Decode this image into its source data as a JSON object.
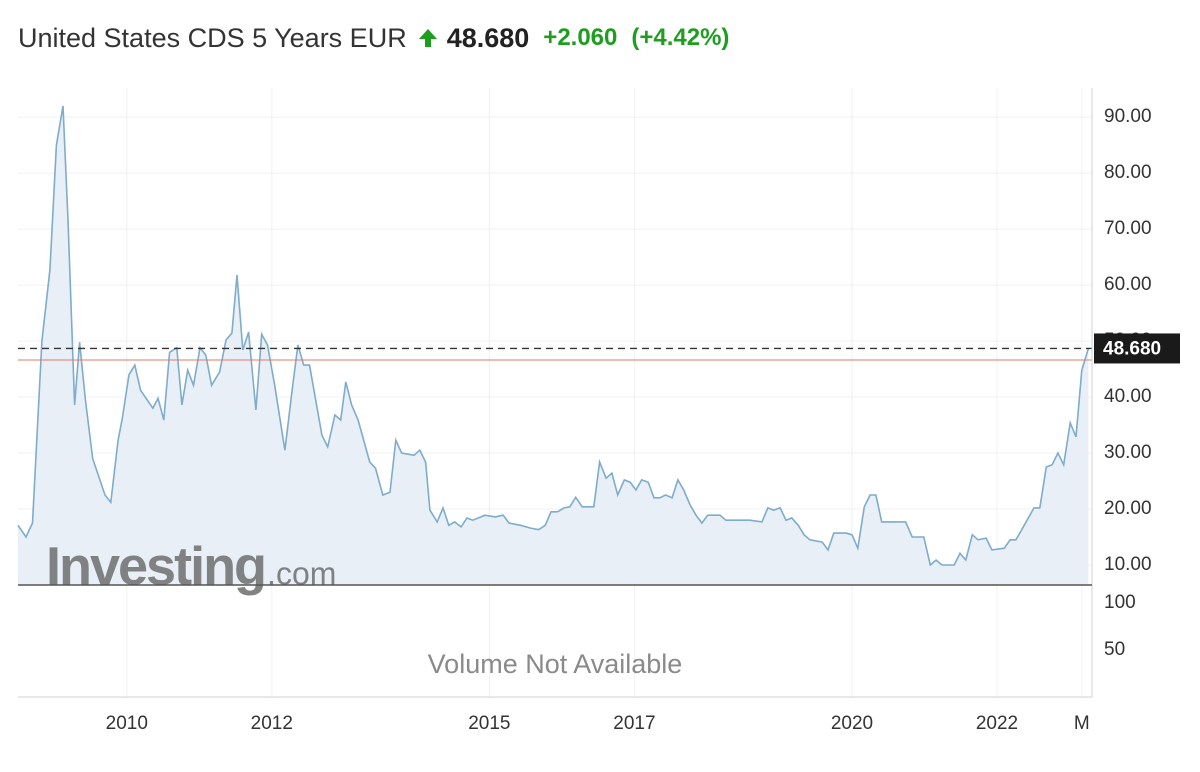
{
  "header": {
    "title": "United States CDS 5 Years EUR",
    "change": "+2.060",
    "change_pct": "(+4.42%)"
  },
  "chart_data": {
    "type": "area",
    "current": {
      "value": 48.68,
      "label": "48.680"
    },
    "prev_close_line": 46.62,
    "watermark": "Investing",
    "watermark_suffix": ".com",
    "volume_note": "Volume Not Available",
    "color": "#7eaccb",
    "fill": "#e8eff7",
    "grid": true,
    "xlim": [
      2008.5,
      2023.31
    ],
    "xticks": [
      2010,
      2012,
      2015,
      2017,
      2020,
      2022,
      {
        "value": 2023.17,
        "label": "M"
      }
    ],
    "ylim": [
      6.43,
      95.2
    ],
    "yticks": [
      {
        "value": 10,
        "label": "10.00"
      },
      {
        "value": 20,
        "label": "20.00"
      },
      {
        "value": 30,
        "label": "30.00"
      },
      {
        "value": 40,
        "label": "40.00"
      },
      {
        "value": 50,
        "label": "50.00"
      },
      {
        "value": 60,
        "label": "60.00"
      },
      {
        "value": 70,
        "label": "70.00"
      },
      {
        "value": 80,
        "label": "80.00"
      },
      {
        "value": 90,
        "label": "90.00"
      }
    ],
    "volume_ylim": [
      0,
      119
    ],
    "volume_yticks": [
      100,
      50
    ],
    "x": [
      2008.5,
      2008.61,
      2008.7,
      2008.83,
      2008.94,
      2009.03,
      2009.12,
      2009.19,
      2009.28,
      2009.35,
      2009.43,
      2009.53,
      2009.7,
      2009.78,
      2009.88,
      2009.94,
      2010.03,
      2010.11,
      2010.19,
      2010.28,
      2010.36,
      2010.43,
      2010.51,
      2010.59,
      2010.69,
      2010.76,
      2010.84,
      2010.92,
      2011.01,
      2011.09,
      2011.17,
      2011.28,
      2011.37,
      2011.45,
      2011.52,
      2011.6,
      2011.68,
      2011.78,
      2011.86,
      2011.94,
      2012.04,
      2012.18,
      2012.28,
      2012.36,
      2012.44,
      2012.52,
      2012.69,
      2012.77,
      2012.87,
      2012.95,
      2013.02,
      2013.1,
      2013.19,
      2013.35,
      2013.43,
      2013.53,
      2013.63,
      2013.71,
      2013.79,
      2013.96,
      2014.04,
      2014.12,
      2014.18,
      2014.28,
      2014.36,
      2014.44,
      2014.52,
      2014.61,
      2014.69,
      2014.77,
      2014.94,
      2015.08,
      2015.19,
      2015.27,
      2015.43,
      2015.57,
      2015.68,
      2015.77,
      2015.85,
      2015.94,
      2016.03,
      2016.11,
      2016.19,
      2016.28,
      2016.44,
      2016.52,
      2016.61,
      2016.69,
      2016.77,
      2016.86,
      2016.94,
      2017.02,
      2017.1,
      2017.19,
      2017.27,
      2017.35,
      2017.43,
      2017.52,
      2017.6,
      2017.68,
      2017.77,
      2017.85,
      2017.93,
      2018.01,
      2018.18,
      2018.26,
      2018.59,
      2018.76,
      2018.84,
      2018.92,
      2019.01,
      2019.09,
      2019.17,
      2019.26,
      2019.34,
      2019.42,
      2019.59,
      2019.67,
      2019.75,
      2019.92,
      2020.0,
      2020.08,
      2020.17,
      2020.25,
      2020.33,
      2020.41,
      2020.74,
      2020.83,
      2020.99,
      2021.08,
      2021.16,
      2021.24,
      2021.41,
      2021.49,
      2021.57,
      2021.66,
      2021.74,
      2021.85,
      2021.93,
      2022.1,
      2022.18,
      2022.26,
      2022.34,
      2022.51,
      2022.59,
      2022.68,
      2022.76,
      2022.84,
      2022.92,
      2023.01,
      2023.09,
      2023.17,
      2023.26
    ],
    "values": [
      17.1,
      15,
      17.5,
      50,
      62.7,
      85,
      92,
      71.6,
      38.6,
      49.8,
      39.5,
      29,
      22.5,
      21.2,
      32.3,
      36.3,
      44,
      45.7,
      41.2,
      39.5,
      38,
      39.8,
      35.9,
      48,
      48.8,
      38.6,
      44.8,
      42.1,
      48.8,
      47.5,
      42.1,
      44.5,
      50.2,
      51.4,
      61.8,
      48.4,
      51.6,
      37.7,
      51.2,
      49.3,
      42.1,
      30.5,
      41.2,
      49.3,
      45.7,
      45.7,
      33.2,
      31.1,
      36.8,
      35.9,
      42.7,
      38.6,
      35.9,
      28.4,
      27.3,
      22.5,
      23,
      32.3,
      30,
      29.6,
      30.5,
      28.4,
      19.8,
      17.7,
      20.2,
      17.1,
      17.7,
      16.8,
      18.4,
      18,
      18.9,
      18.6,
      18.9,
      17.5,
      17.1,
      16.6,
      16.3,
      17.1,
      19.5,
      19.5,
      20.2,
      20.4,
      22.1,
      20.4,
      20.4,
      28.4,
      25.5,
      26.4,
      22.5,
      25.2,
      24.8,
      23.4,
      25.2,
      24.8,
      22,
      22,
      22.5,
      22,
      25.2,
      23.4,
      20.7,
      18.9,
      17.5,
      18.9,
      18.9,
      18,
      18,
      17.7,
      20.2,
      19.8,
      20.2,
      18,
      18.4,
      17.1,
      15.4,
      14.5,
      14.1,
      12.7,
      15.7,
      15.7,
      15.4,
      13,
      20.4,
      22.5,
      22.5,
      17.7,
      17.7,
      15,
      15,
      10,
      10.9,
      10,
      10,
      12.1,
      10.9,
      15.4,
      14.5,
      14.8,
      12.7,
      13,
      14.5,
      14.5,
      16.3,
      20.2,
      20.2,
      27.5,
      27.9,
      30,
      27.9,
      35.4,
      32.9,
      44.8,
      48.68
    ]
  }
}
